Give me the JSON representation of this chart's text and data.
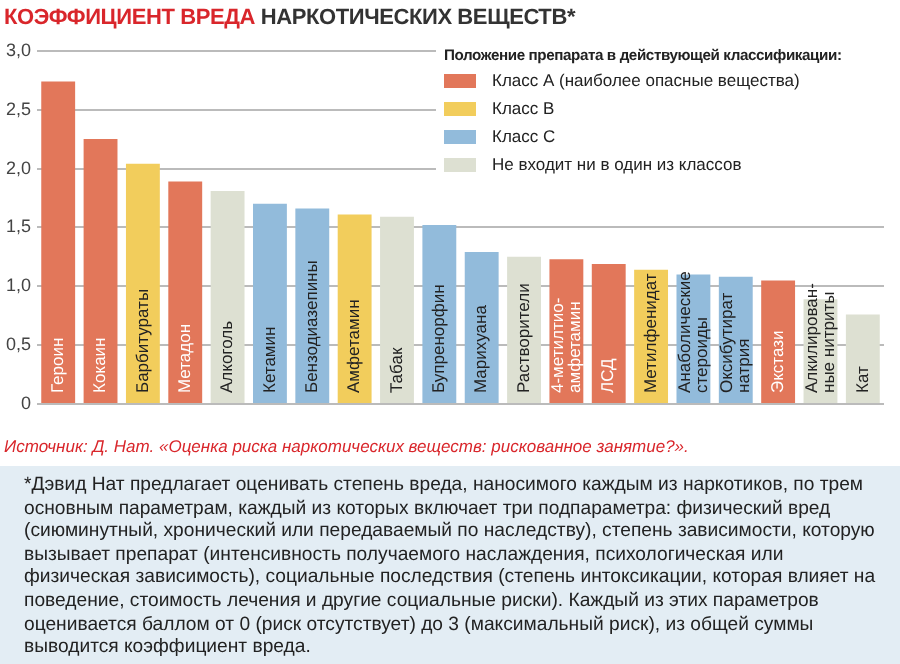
{
  "chart_data": {
    "type": "bar",
    "title": "КОЭФФИЦИЕНТ ВРЕДА НАРКОТИЧЕСКИХ ВЕЩЕСТВ*",
    "categories": [
      "Героин",
      "Кокаин",
      "Барбитураты",
      "Метадон",
      "Алкоголь",
      "Кетамин",
      "Бензодиазепины",
      "Амфетамин",
      "Табак",
      "Бупренорфин",
      "Марихуана",
      "Растворители",
      "4-метилтио-\nамфетамин",
      "ЛСД",
      "Метилфенидат",
      "Анаболические\nстероиды",
      "Оксибутират\nнатрия",
      "Экстази",
      "Алкилирован-\nные нитриты",
      "Кат"
    ],
    "series": [
      {
        "name": "Класс А (наиболее опасные вещества)",
        "color": "#e2775a",
        "values": [
          2.74,
          2.25,
          null,
          1.89,
          null,
          null,
          null,
          null,
          null,
          null,
          null,
          null,
          1.23,
          1.19,
          null,
          null,
          null,
          1.05,
          null,
          null
        ]
      },
      {
        "name": "Класс В",
        "color": "#f2cd5c",
        "values": [
          null,
          null,
          2.04,
          null,
          null,
          null,
          null,
          1.61,
          null,
          null,
          null,
          null,
          null,
          null,
          1.14,
          null,
          null,
          null,
          null,
          null
        ]
      },
      {
        "name": "Класс С",
        "color": "#92bbdb",
        "values": [
          null,
          null,
          null,
          null,
          null,
          1.7,
          1.66,
          null,
          null,
          1.52,
          1.29,
          null,
          null,
          null,
          null,
          1.1,
          1.08,
          null,
          null,
          null
        ]
      },
      {
        "name": "Не входит ни в один из классов",
        "color": "#dde0d2",
        "values": [
          null,
          null,
          null,
          null,
          1.81,
          null,
          null,
          null,
          1.59,
          null,
          null,
          1.25,
          null,
          null,
          null,
          null,
          null,
          null,
          0.89,
          0.76
        ]
      }
    ],
    "legend_title": "Положение препарата в действующей классификации:",
    "legend": "top right",
    "ylim": [
      0,
      3
    ],
    "yticks": [
      0,
      {
        "value": 0.5,
        "label": "0,5"
      },
      {
        "value": 1,
        "label": "1,0"
      },
      {
        "value": 1.5,
        "label": "1,5"
      },
      {
        "value": 2,
        "label": "2,0"
      },
      {
        "value": 2.5,
        "label": "2,5"
      },
      {
        "value": 3,
        "label": "3,0"
      }
    ],
    "grid": "y",
    "annotations": [
      "Источник: Д. Нат. «Оценка риска наркотических веществ: рискованное занятие?».",
      "*Дэвид Нат предлагает оценивать степень вреда, наносимого каждым из наркотиков, по трем основным параметрам, каждый из которых включает три подпараметра: физический вред (сиюминутный, хронический или передаваемый по наследству), степень зависимости, которую вызывает препарат (интенсивность получаемого наслаждения, психологическая или физическая зависимость), социальные последствия (степень интоксикации, которая влияет на поведение, стоимость лечения и другие социальные риски). Каждый из этих параметров оценивается баллом от 0 (риск отсутствует) до 3 (максимальный риск), из общей суммы выводится коэффициент вреда."
    ]
  }
}
